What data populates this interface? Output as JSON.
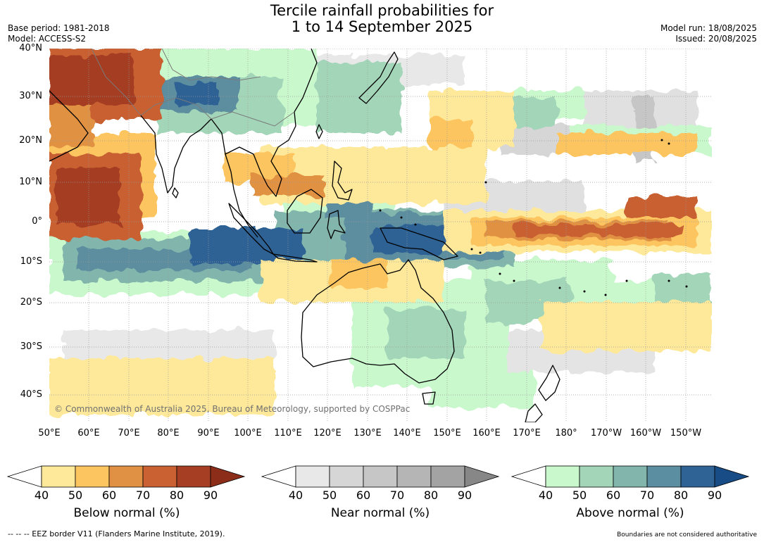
{
  "title_line1": "Tercile rainfall probabilities for",
  "title_line2": "1 to 14 September 2025",
  "meta_left": [
    "Base period: 1981-2018",
    "Model: ACCESS-S2"
  ],
  "meta_right": [
    "Model run: 18/08/2025",
    "Issued: 20/08/2025"
  ],
  "map": {
    "lat_labels": [
      "40°N",
      "30°N",
      "20°N",
      "10°N",
      "0°",
      "10°S",
      "20°S",
      "30°S",
      "40°S"
    ],
    "lon_labels": [
      "50°E",
      "60°E",
      "70°E",
      "80°E",
      "90°E",
      "100°E",
      "110°E",
      "120°E",
      "130°E",
      "140°E",
      "150°E",
      "160°E",
      "170°E",
      "180°",
      "170°W",
      "160°W",
      "150°W"
    ],
    "copyright": "© Commonwealth of Australia 2025, Bureau of Meteorology, supported by COSPPac"
  },
  "colorbars": [
    {
      "title": "Below normal (%)",
      "ticks": [
        "40",
        "50",
        "60",
        "70",
        "80",
        "90"
      ],
      "colors": [
        "#ffffff",
        "#fee89a",
        "#fdc560",
        "#e19143",
        "#c96132",
        "#a53e22",
        "#8b2d19"
      ]
    },
    {
      "title": "Near normal (%)",
      "ticks": [
        "40",
        "50",
        "60",
        "70",
        "80",
        "90"
      ],
      "colors": [
        "#ffffff",
        "#e8e8e8",
        "#d6d6d6",
        "#c6c6c6",
        "#b5b5b5",
        "#a3a3a3",
        "#878787"
      ]
    },
    {
      "title": "Above normal (%)",
      "ticks": [
        "40",
        "50",
        "60",
        "70",
        "80",
        "90"
      ],
      "colors": [
        "#ffffff",
        "#c9f8cc",
        "#a3d6b8",
        "#82b6ad",
        "#5b8ea0",
        "#2f6295",
        "#174c86"
      ]
    }
  ],
  "footer_left": "--  --  -- EEZ border V11 (Flanders Marine Institute, 2019).",
  "footer_right": "Boundaries are not considered authoritative"
}
